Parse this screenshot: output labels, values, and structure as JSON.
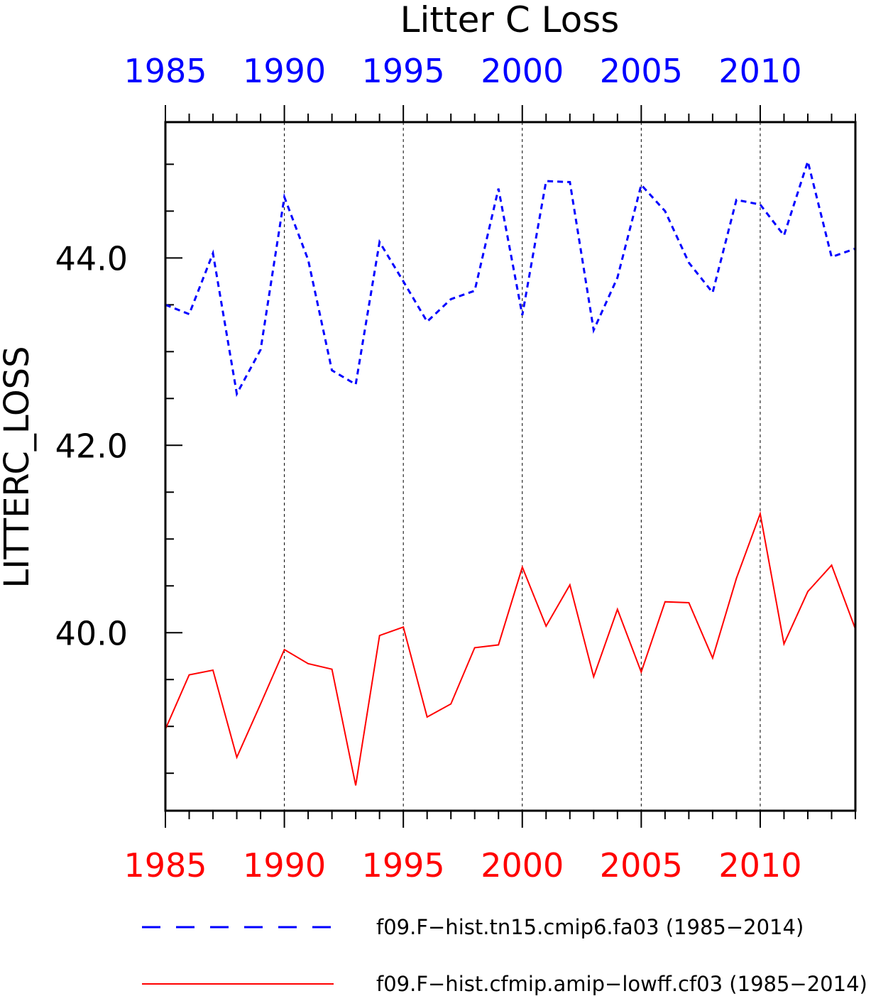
{
  "chart_data": {
    "type": "line",
    "title": "Litter C Loss",
    "ylabel": "LITTERC_LOSS",
    "xlabel": "",
    "xlim": [
      1985,
      2014
    ],
    "ylim": [
      38.1,
      45.45
    ],
    "x_ticks": [
      1985,
      1990,
      1995,
      2000,
      2005,
      2010
    ],
    "y_ticks": [
      "40.0",
      "42.0",
      "44.0"
    ],
    "top_axis_color": "#0000ff",
    "bottom_axis_color": "#ff0000",
    "vertical_gridlines": true,
    "x": [
      1985,
      1986,
      1987,
      1988,
      1989,
      1990,
      1991,
      1992,
      1993,
      1994,
      1995,
      1996,
      1997,
      1998,
      1999,
      2000,
      2001,
      2002,
      2003,
      2004,
      2005,
      2006,
      2007,
      2008,
      2009,
      2010,
      2011,
      2012,
      2013,
      2014
    ],
    "series": [
      {
        "name": "f09.F−hist.tn15.cmip6.fa03 (1985−2014)",
        "color": "#0000ff",
        "dash": "dashed",
        "values": [
          43.5,
          43.4,
          44.05,
          42.55,
          43.02,
          44.65,
          43.98,
          42.8,
          42.65,
          44.17,
          43.75,
          43.32,
          43.56,
          43.65,
          44.74,
          43.39,
          44.82,
          44.81,
          43.23,
          43.79,
          44.78,
          44.5,
          43.95,
          43.63,
          44.62,
          44.57,
          44.24,
          45.03,
          44.01,
          44.1
        ]
      },
      {
        "name": "f09.F−hist.cfmip.amip−lowff.cf03 (1985−2014)",
        "color": "#ff0000",
        "dash": "solid",
        "values": [
          38.97,
          39.55,
          39.6,
          38.67,
          39.24,
          39.82,
          39.67,
          39.61,
          38.37,
          39.97,
          40.06,
          39.1,
          39.24,
          39.84,
          39.87,
          40.7,
          40.07,
          40.51,
          39.53,
          40.25,
          39.58,
          40.33,
          40.32,
          39.73,
          40.58,
          41.27,
          39.88,
          40.44,
          40.72,
          40.04
        ]
      }
    ]
  }
}
